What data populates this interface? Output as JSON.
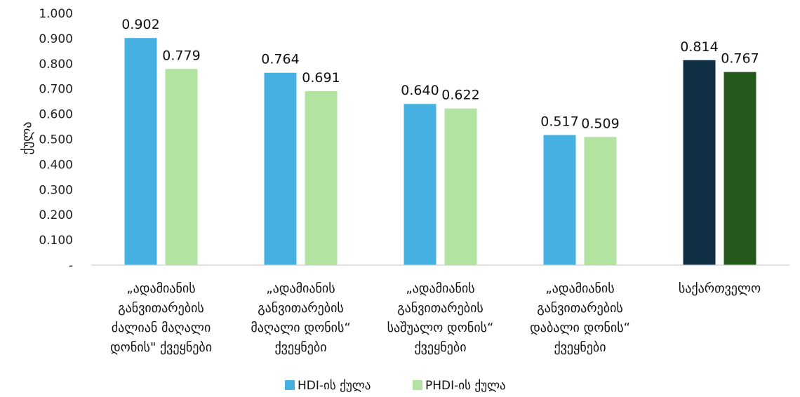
{
  "chart_data": {
    "type": "bar",
    "title": "",
    "xlabel": "",
    "ylabel": "ქულა",
    "ylim": [
      0,
      1.0
    ],
    "yticks": [
      "-",
      "0.100",
      "0.200",
      "0.300",
      "0.400",
      "0.500",
      "0.600",
      "0.700",
      "0.800",
      "0.900",
      "1.000"
    ],
    "categories": [
      [
        "„ადამიანის",
        "განვითარების",
        "ძალიან მაღალი",
        "დონის\" ქვეყნები"
      ],
      [
        "„ადამიანის",
        "განვითარების",
        "მაღალი დონის“",
        "ქვეყნები"
      ],
      [
        "„ადამიანის",
        "განვითარების",
        "საშუალო დონის“",
        "ქვეყნები"
      ],
      [
        "„ადამიანის",
        "განვითარების",
        "დაბალი დონის“",
        "ქვეყნები"
      ],
      [
        "საქართველო"
      ]
    ],
    "series": [
      {
        "name": "HDI-ის ქულა",
        "values": [
          0.902,
          0.764,
          0.64,
          0.517,
          0.814
        ],
        "labels": [
          "0.902",
          "0.764",
          "0.640",
          "0.517",
          "0.814"
        ],
        "color": "#46b0e1",
        "highlight_color": "#0e2f44"
      },
      {
        "name": "PHDI-ის ქულა",
        "values": [
          0.779,
          0.691,
          0.622,
          0.509,
          0.767
        ],
        "labels": [
          "0.779",
          "0.691",
          "0.622",
          "0.509",
          "0.767"
        ],
        "color": "#b3e3a0",
        "highlight_color": "#265a1c"
      }
    ],
    "highlight_category_index": 4,
    "grid": false,
    "legend_position": "bottom"
  }
}
